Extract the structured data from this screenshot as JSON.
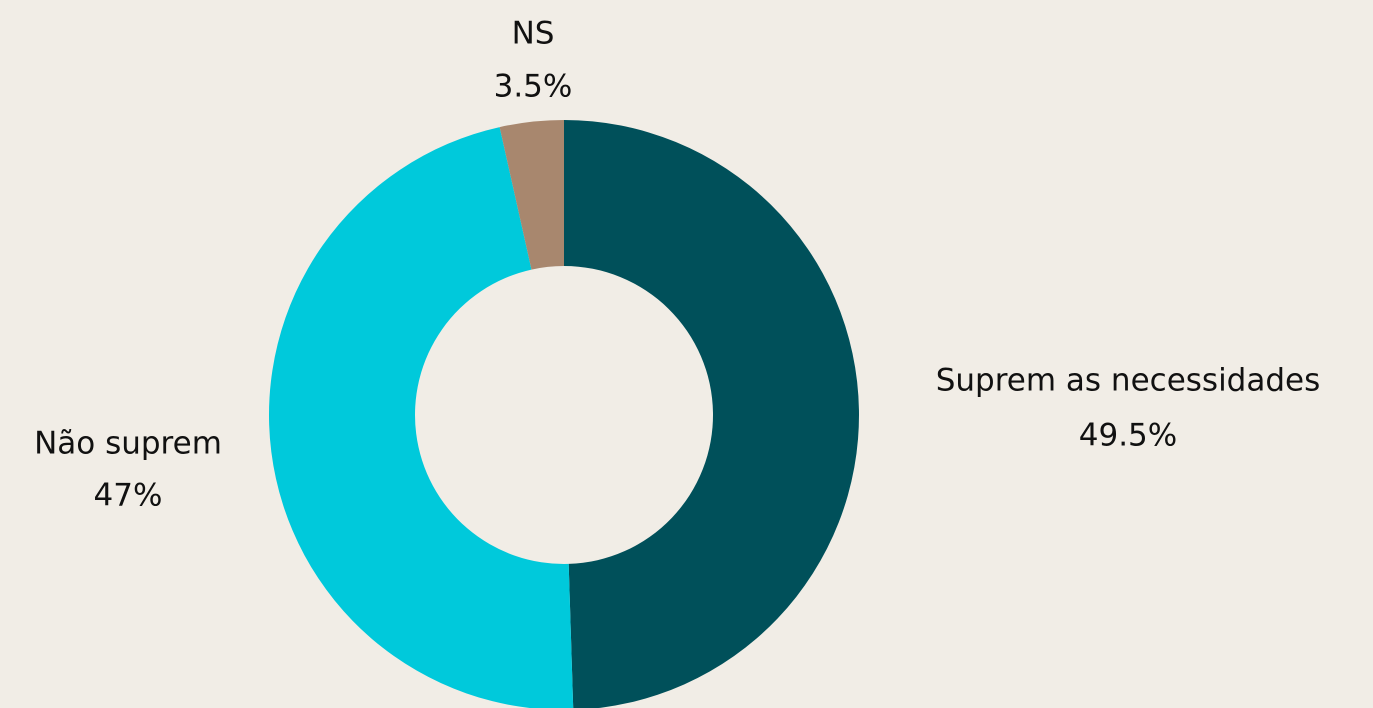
{
  "chart_data": {
    "type": "donut",
    "categories": [
      "Suprem as necessidades",
      "Não suprem",
      "NS"
    ],
    "values": [
      49.5,
      47,
      3.5
    ],
    "value_labels": [
      "49.5%",
      "47%",
      "3.5%"
    ],
    "colors": [
      "#00505a",
      "#00c9db",
      "#a8876e"
    ]
  }
}
